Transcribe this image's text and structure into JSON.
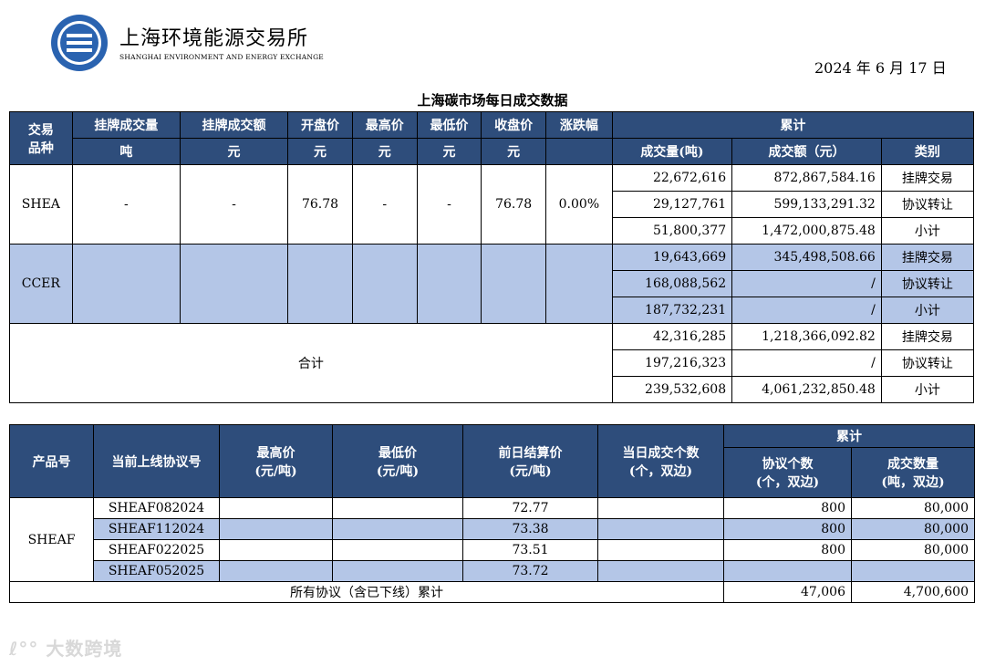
{
  "header": {
    "org_cn": "上海环境能源交易所",
    "org_en": "SHANGHAI ENVIRONMENT AND ENERGY EXCHANGE",
    "date": "2024 年 6 月 17 日"
  },
  "title": "上海碳市场每日成交数据",
  "table1": {
    "headers": {
      "col1": "交易品种",
      "col1_a": "交易",
      "col1_b": "品种",
      "listed_volume": "挂牌成交量",
      "listed_amount": "挂牌成交额",
      "open": "开盘价",
      "high": "最高价",
      "low": "最低价",
      "close": "收盘价",
      "change": "涨跌幅",
      "cumulative": "累计",
      "unit_ton": "吨",
      "unit_yuan": "元",
      "cum_volume": "成交量(吨)",
      "cum_amount": "成交额（元）",
      "category": "类别"
    },
    "shea": {
      "name": "SHEA",
      "listed_volume": "-",
      "listed_amount": "-",
      "open": "76.78",
      "high": "-",
      "low": "-",
      "close": "76.78",
      "change": "0.00%",
      "rows": [
        {
          "volume": "22,672,616",
          "amount": "872,867,584.16",
          "category": "挂牌交易"
        },
        {
          "volume": "29,127,761",
          "amount": "599,133,291.32",
          "category": "协议转让"
        },
        {
          "volume": "51,800,377",
          "amount": "1,472,000,875.48",
          "category": "小计"
        }
      ]
    },
    "ccer": {
      "name": "CCER",
      "rows": [
        {
          "volume": "19,643,669",
          "amount": "345,498,508.66",
          "category": "挂牌交易"
        },
        {
          "volume": "168,088,562",
          "amount": "/",
          "category": "协议转让"
        },
        {
          "volume": "187,732,231",
          "amount": "/",
          "category": "小计"
        }
      ]
    },
    "total": {
      "label": "合计",
      "rows": [
        {
          "volume": "42,316,285",
          "amount": "1,218,366,092.82",
          "category": "挂牌交易"
        },
        {
          "volume": "197,216,323",
          "amount": "/",
          "category": "协议转让"
        },
        {
          "volume": "239,532,608",
          "amount": "4,061,232,850.48",
          "category": "小计"
        }
      ]
    }
  },
  "table2": {
    "headers": {
      "product": "产品号",
      "contract": "当前上线协议号",
      "high": "最高价",
      "high_unit": "(元/吨)",
      "low": "最低价",
      "low_unit": "(元/吨)",
      "settle": "前日结算价",
      "settle_unit": "(元/吨)",
      "daily_count": "当日成交个数",
      "daily_count_unit": "(个，双边)",
      "cumulative": "累计",
      "agree_count": "协议个数",
      "agree_count_unit": "(个，双边)",
      "volume": "成交数量",
      "volume_unit": "(吨，双边)"
    },
    "product": "SHEAF",
    "rows": [
      {
        "contract": "SHEAF082024",
        "high": "",
        "low": "",
        "settle": "72.77",
        "daily": "",
        "agree": "800",
        "volume": "80,000"
      },
      {
        "contract": "SHEAF112024",
        "high": "",
        "low": "",
        "settle": "73.38",
        "daily": "",
        "agree": "800",
        "volume": "80,000"
      },
      {
        "contract": "SHEAF022025",
        "high": "",
        "low": "",
        "settle": "73.51",
        "daily": "",
        "agree": "800",
        "volume": "80,000"
      },
      {
        "contract": "SHEAF052025",
        "high": "",
        "low": "",
        "settle": "73.72",
        "daily": "",
        "agree": "",
        "volume": ""
      }
    ],
    "footer": {
      "label": "所有协议（含已下线）累计",
      "agree": "47,006",
      "volume": "4,700,600"
    }
  },
  "watermark": "大数跨境",
  "colors": {
    "header_bg": "#2e4d7b",
    "highlight_bg": "#b4c6e7",
    "logo_blue": "#2a63b0"
  }
}
